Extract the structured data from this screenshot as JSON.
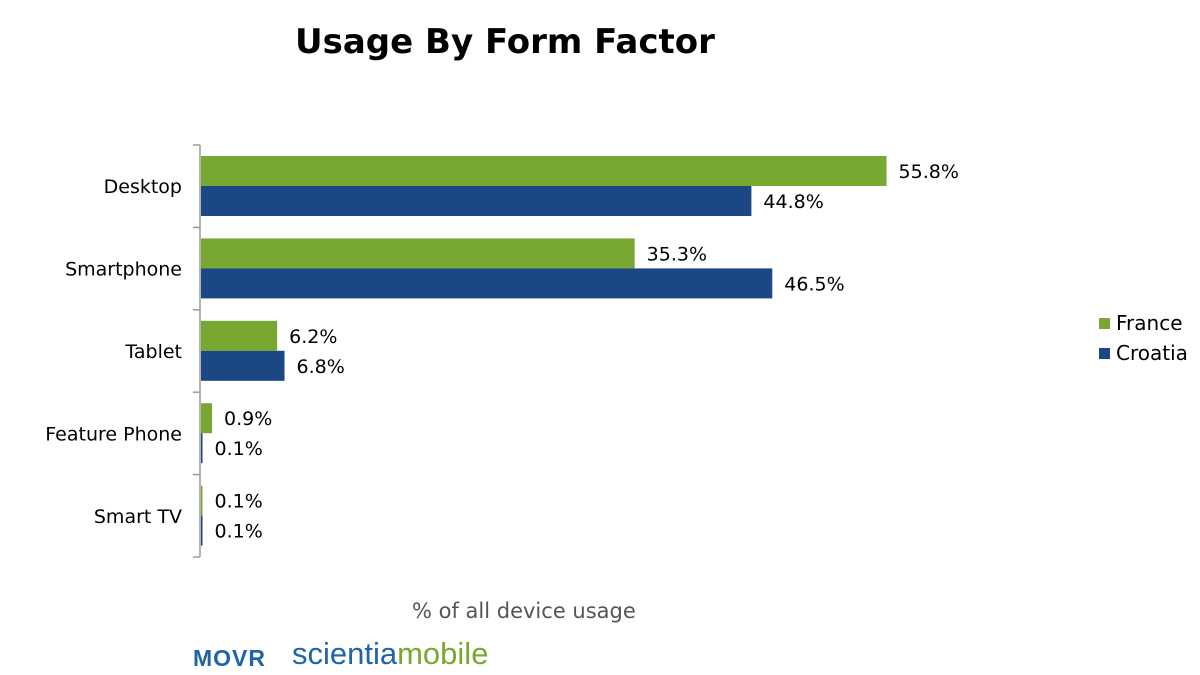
{
  "colors": {
    "france": "#79a832",
    "croatia": "#1b4785",
    "axis": "#9a9a9a",
    "logo_blue": "#1e64a6",
    "logo_green": "#79a832"
  },
  "chart_data": {
    "type": "bar",
    "orientation": "horizontal",
    "title": "Usage By Form Factor",
    "xlabel": "% of all device usage",
    "ylabel": "",
    "categories": [
      "Desktop",
      "Smartphone",
      "Tablet",
      "Feature Phone",
      "Smart TV"
    ],
    "series": [
      {
        "name": "France",
        "values": [
          55.8,
          35.3,
          6.2,
          0.9,
          0.1
        ],
        "labels": [
          "55.8%",
          "35.3%",
          "6.2%",
          "0.9%",
          "0.1%"
        ]
      },
      {
        "name": "Croatia",
        "values": [
          44.8,
          46.5,
          6.8,
          0.1,
          0.1
        ],
        "labels": [
          "44.8%",
          "46.5%",
          "6.8%",
          "0.1%",
          "0.1%"
        ]
      }
    ],
    "xlim": [
      0,
      70
    ],
    "grid": false,
    "legend_position": "right"
  },
  "branding": {
    "logo_left": "MOVR",
    "logo_right_part1": "scientia",
    "logo_right_part2": "mobile"
  }
}
